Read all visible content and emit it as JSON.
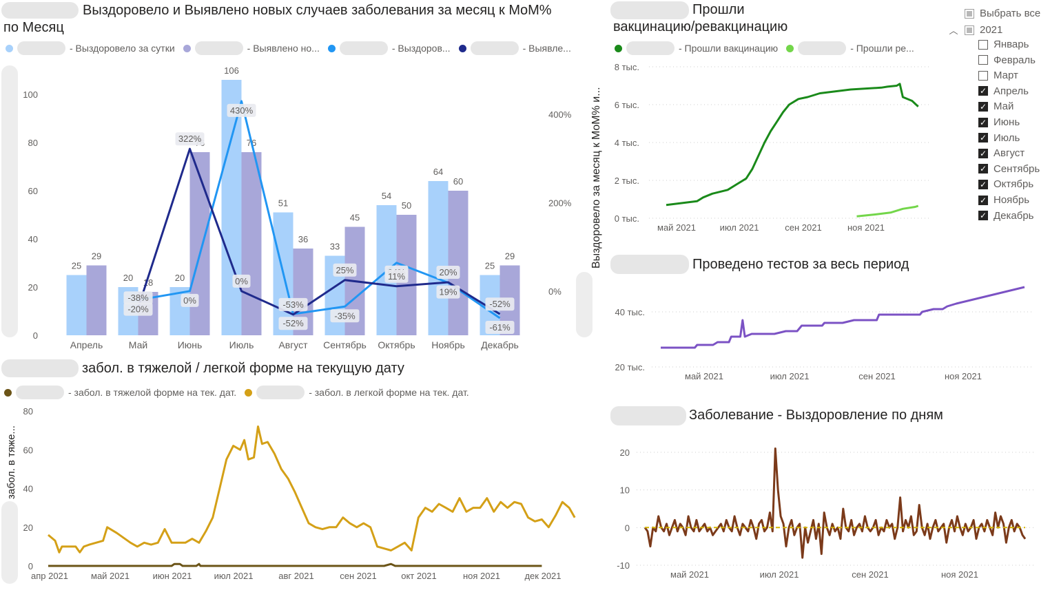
{
  "panel_main": {
    "title_line1": "Выздоровело и Выявлено новых случаев заболевания за месяц к MoM%",
    "title_line2": "по Месяц",
    "legend": [
      {
        "label": "- Выздоровело за сутки",
        "color": "#a8d1fb"
      },
      {
        "label": "- Выявлено но...",
        "color": "#a8a7d9"
      },
      {
        "label": "- Выздоров...",
        "color": "#2196f3"
      },
      {
        "label": "- Выявле...",
        "color": "#1f2a8c"
      }
    ],
    "right_axis_label": "Выздоровело за месяц к MoM% и..."
  },
  "panel_severity": {
    "title": "забол. в тяжелой / легкой форме на текущую дату",
    "legend": [
      {
        "label": "- забол. в тяжелой форме на тек. дат.",
        "color": "#6b5417"
      },
      {
        "label": "- забол. в легкой форме на тек. дат.",
        "color": "#d4a017"
      }
    ],
    "y_axis_label": "забол. в тяже..."
  },
  "panel_vacc": {
    "title_line1": "Прошли",
    "title_line2": "вакцинацию/ревакцинацию",
    "legend": [
      {
        "label": "- Прошли вакцинацию",
        "color": "#1a8a1a"
      },
      {
        "label": "- Прошли ре...",
        "color": "#73d64a"
      }
    ]
  },
  "panel_tests": {
    "title": "Проведено тестов за весь период"
  },
  "panel_diff": {
    "title": "Заболевание - Выздоровление по дням"
  },
  "slicer": {
    "select_all": "Выбрать все",
    "year": "2021",
    "collapse_icon": "chevron-up-icon",
    "months": [
      {
        "label": "Январь",
        "checked": false
      },
      {
        "label": "Февраль",
        "checked": false
      },
      {
        "label": "Март",
        "checked": false
      },
      {
        "label": "Апрель",
        "checked": true
      },
      {
        "label": "Май",
        "checked": true
      },
      {
        "label": "Июнь",
        "checked": true
      },
      {
        "label": "Июль",
        "checked": true
      },
      {
        "label": "Август",
        "checked": true
      },
      {
        "label": "Сентябрь",
        "checked": true
      },
      {
        "label": "Октябрь",
        "checked": true
      },
      {
        "label": "Ноябрь",
        "checked": true
      },
      {
        "label": "Декабрь",
        "checked": true
      }
    ]
  },
  "chart_data": [
    {
      "type": "bar",
      "title": "Выздоровело и Выявлено новых случаев заболевания за месяц к MoM% по Месяц",
      "categories": [
        "Апрель",
        "Май",
        "Июнь",
        "Июль",
        "Август",
        "Сентябрь",
        "Октябрь",
        "Ноябрь",
        "Декабрь"
      ],
      "series": [
        {
          "kind": "bar",
          "values": [
            25,
            20,
            20,
            106,
            51,
            33,
            54,
            64,
            25
          ],
          "color": "#a8d1fb"
        },
        {
          "kind": "bar",
          "values": [
            29,
            18,
            76,
            76,
            36,
            45,
            50,
            60,
            29
          ],
          "color": "#a8a7d9"
        },
        {
          "kind": "line",
          "axis": "right",
          "values": [
            null,
            -20,
            0,
            430,
            -52,
            -35,
            64,
            19,
            -61
          ],
          "labels": [
            "",
            "-20%",
            "0%",
            "430%",
            "-52%",
            "-35%",
            "64%",
            "19%",
            "-61%"
          ],
          "color": "#2196f3"
        },
        {
          "kind": "line",
          "axis": "right",
          "values": [
            null,
            -38,
            322,
            0,
            -53,
            25,
            11,
            20,
            -52
          ],
          "labels": [
            "",
            "-38%",
            "322%",
            "0%",
            "-53%",
            "25%",
            "11%",
            "20%",
            "-52%"
          ],
          "color": "#1f2a8c"
        }
      ],
      "ylim": [
        0,
        110
      ],
      "y_ticks": [
        0,
        20,
        40,
        60,
        80,
        100
      ],
      "y2lim": [
        -100,
        500
      ],
      "y2_ticks": [
        "0%",
        "200%",
        "400%"
      ],
      "y2_tick_values": [
        0,
        200,
        400
      ],
      "ylabel2": "Выздоровело за месяц к MoM% и..."
    },
    {
      "type": "line",
      "title": "забол. в тяжелой / легкой форме на текущую дату",
      "x_ticks": [
        "апр 2021",
        "май 2021",
        "июн 2021",
        "июл 2021",
        "авг 2021",
        "сен 2021",
        "окт 2021",
        "ноя 2021",
        "дек 2021"
      ],
      "ylim": [
        0,
        80
      ],
      "y_ticks": [
        0,
        20,
        40,
        60,
        80
      ],
      "ylabel": "забол. в тяже...",
      "series": [
        {
          "color": "#6b5417",
          "points": [
            [
              0,
              0
            ],
            [
              9.0,
              0
            ],
            [
              9.2,
              1
            ],
            [
              9.6,
              1
            ],
            [
              9.8,
              0
            ],
            [
              10.8,
              0
            ],
            [
              11.0,
              1
            ],
            [
              11.1,
              0
            ],
            [
              24.5,
              0
            ],
            [
              25,
              1
            ],
            [
              25.3,
              0
            ],
            [
              36,
              0
            ]
          ]
        },
        {
          "color": "#d4a017",
          "points": [
            [
              0,
              16
            ],
            [
              0.5,
              13
            ],
            [
              0.8,
              7
            ],
            [
              1.0,
              10
            ],
            [
              2,
              10
            ],
            [
              2.3,
              7
            ],
            [
              2.6,
              10
            ],
            [
              3,
              11
            ],
            [
              4,
              13
            ],
            [
              4.3,
              20
            ],
            [
              5,
              17
            ],
            [
              6,
              12
            ],
            [
              6.5,
              10
            ],
            [
              7,
              12
            ],
            [
              7.5,
              11
            ],
            [
              8,
              12
            ],
            [
              8.5,
              19
            ],
            [
              9,
              12
            ],
            [
              10,
              12
            ],
            [
              10.5,
              14
            ],
            [
              11,
              12
            ],
            [
              11.5,
              18
            ],
            [
              12,
              25
            ],
            [
              12.5,
              40
            ],
            [
              13,
              55
            ],
            [
              13.5,
              62
            ],
            [
              14,
              60
            ],
            [
              14.3,
              65
            ],
            [
              14.6,
              55
            ],
            [
              15,
              56
            ],
            [
              15.3,
              72
            ],
            [
              15.6,
              63
            ],
            [
              16,
              64
            ],
            [
              16.5,
              58
            ],
            [
              17,
              50
            ],
            [
              17.5,
              45
            ],
            [
              18,
              38
            ],
            [
              18.5,
              30
            ],
            [
              19,
              22
            ],
            [
              19.5,
              20
            ],
            [
              20,
              19
            ],
            [
              20.5,
              20
            ],
            [
              21,
              20
            ],
            [
              21.5,
              25
            ],
            [
              22,
              22
            ],
            [
              22.5,
              20
            ],
            [
              23,
              22
            ],
            [
              23.5,
              20
            ],
            [
              24,
              10
            ],
            [
              24.5,
              9
            ],
            [
              25,
              8
            ],
            [
              25.5,
              10
            ],
            [
              26,
              12
            ],
            [
              26.5,
              8
            ],
            [
              27,
              25
            ],
            [
              27.5,
              30
            ],
            [
              28,
              28
            ],
            [
              28.5,
              32
            ],
            [
              29,
              30
            ],
            [
              29.5,
              28
            ],
            [
              30,
              35
            ],
            [
              30.5,
              28
            ],
            [
              31,
              30
            ],
            [
              31.5,
              30
            ],
            [
              32,
              35
            ],
            [
              32.5,
              28
            ],
            [
              33,
              33
            ],
            [
              33.5,
              30
            ],
            [
              34,
              33
            ],
            [
              34.5,
              32
            ],
            [
              35,
              25
            ],
            [
              35.5,
              23
            ],
            [
              36,
              24
            ],
            [
              36.5,
              20
            ],
            [
              37,
              26
            ],
            [
              37.5,
              33
            ],
            [
              38,
              30
            ],
            [
              38.4,
              25
            ]
          ]
        }
      ]
    },
    {
      "type": "line",
      "title": "Прошли вакцинацию/ревакцинацию",
      "x_ticks": [
        "май 2021",
        "июл 2021",
        "сен 2021",
        "ноя 2021"
      ],
      "y_ticks": [
        "0 тыс.",
        "2 тыс.",
        "4 тыс.",
        "6 тыс.",
        "8 тыс."
      ],
      "ylim": [
        0,
        8000
      ],
      "series": [
        {
          "color": "#1a8a1a",
          "points": [
            [
              0,
              700
            ],
            [
              0.5,
              800
            ],
            [
              1,
              900
            ],
            [
              1.2,
              1100
            ],
            [
              1.5,
              1300
            ],
            [
              2,
              1500
            ],
            [
              2.3,
              1800
            ],
            [
              2.6,
              2100
            ],
            [
              2.8,
              2600
            ],
            [
              3,
              3300
            ],
            [
              3.2,
              4000
            ],
            [
              3.4,
              4600
            ],
            [
              3.6,
              5100
            ],
            [
              3.8,
              5600
            ],
            [
              4,
              6000
            ],
            [
              4.3,
              6300
            ],
            [
              4.6,
              6400
            ],
            [
              5,
              6600
            ],
            [
              5.5,
              6700
            ],
            [
              6,
              6800
            ],
            [
              6.5,
              6850
            ],
            [
              7,
              6900
            ],
            [
              7.2,
              6950
            ],
            [
              7.5,
              7000
            ],
            [
              7.6,
              7100
            ],
            [
              7.7,
              6400
            ],
            [
              8,
              6200
            ],
            [
              8.2,
              5900
            ]
          ]
        },
        {
          "color": "#73d64a",
          "points": [
            [
              6.2,
              100
            ],
            [
              6.8,
              200
            ],
            [
              7.3,
              300
            ],
            [
              7.7,
              500
            ],
            [
              8.1,
              600
            ],
            [
              8.2,
              650
            ]
          ]
        }
      ]
    },
    {
      "type": "line",
      "title": "Проведено тестов за весь период",
      "x_ticks": [
        "май 2021",
        "июл 2021",
        "сен 2021",
        "ноя 2021"
      ],
      "y_ticks": [
        "20 тыс.",
        "40 тыс."
      ],
      "ylim": [
        20000,
        50000
      ],
      "series": [
        {
          "color": "#7b52c4",
          "points": [
            [
              0,
              27000
            ],
            [
              1.5,
              27000
            ],
            [
              1.6,
              28000
            ],
            [
              2.3,
              28000
            ],
            [
              2.5,
              29000
            ],
            [
              3.0,
              29000
            ],
            [
              3.1,
              31000
            ],
            [
              3.5,
              31000
            ],
            [
              3.6,
              37000
            ],
            [
              3.7,
              31000
            ],
            [
              4.0,
              32000
            ],
            [
              5.0,
              32000
            ],
            [
              5.5,
              33000
            ],
            [
              6.0,
              33000
            ],
            [
              6.2,
              35000
            ],
            [
              7.1,
              35000
            ],
            [
              7.2,
              36000
            ],
            [
              8.0,
              36000
            ],
            [
              8.5,
              37000
            ],
            [
              9.5,
              37000
            ],
            [
              9.6,
              39000
            ],
            [
              11.4,
              39000
            ],
            [
              11.5,
              40000
            ],
            [
              12.0,
              41000
            ],
            [
              12.4,
              41000
            ],
            [
              12.6,
              42000
            ],
            [
              13.0,
              43000
            ],
            [
              13.5,
              44000
            ],
            [
              14.0,
              45000
            ],
            [
              14.5,
              46000
            ],
            [
              15,
              47000
            ],
            [
              15.5,
              48000
            ],
            [
              16,
              49000
            ]
          ]
        }
      ]
    },
    {
      "type": "line",
      "title": "Заболевание - Выздоровление по дням",
      "x_ticks": [
        "май 2021",
        "июл 2021",
        "сен 2021",
        "ноя 2021"
      ],
      "ylim": [
        -10,
        20
      ],
      "y_ticks": [
        -10,
        0,
        10,
        20
      ],
      "series": [
        {
          "color": "#7b3a1a",
          "values": [
            0,
            -1,
            -5,
            0,
            -1,
            3,
            0,
            -1,
            1,
            -2,
            0,
            2,
            -1,
            1,
            0,
            -2,
            3,
            0,
            -1,
            2,
            -1,
            0,
            1,
            -1,
            0,
            -2,
            -1,
            0,
            1,
            -1,
            2,
            0,
            -1,
            3,
            0,
            -2,
            1,
            0,
            -1,
            2,
            0,
            -3,
            1,
            2,
            -1,
            0,
            4,
            -1,
            21,
            10,
            3,
            1,
            -5,
            0,
            2,
            -2,
            0,
            1,
            -8,
            0,
            -4,
            -1,
            2,
            -3,
            1,
            -7,
            4,
            0,
            -2,
            1,
            -1,
            0,
            -3,
            5,
            0,
            -1,
            2,
            -2,
            0,
            1,
            -1,
            3,
            0,
            -1,
            0,
            2,
            -2,
            0,
            -1,
            2,
            0,
            1,
            -3,
            0,
            8,
            -1,
            2,
            0,
            3,
            -2,
            -1,
            6,
            0,
            -2,
            1,
            -3,
            0,
            2,
            -1,
            0,
            1,
            -4,
            0,
            2,
            -1,
            3,
            0,
            -2,
            1,
            -1,
            0,
            2,
            -3,
            0,
            1,
            -1,
            2,
            0,
            -2,
            4,
            0,
            3,
            1,
            -4,
            0,
            2,
            -1,
            1,
            0,
            -2,
            -3
          ]
        },
        {
          "color": "#d4b400",
          "dashed": true,
          "values": [
            0,
            0
          ]
        }
      ]
    }
  ]
}
